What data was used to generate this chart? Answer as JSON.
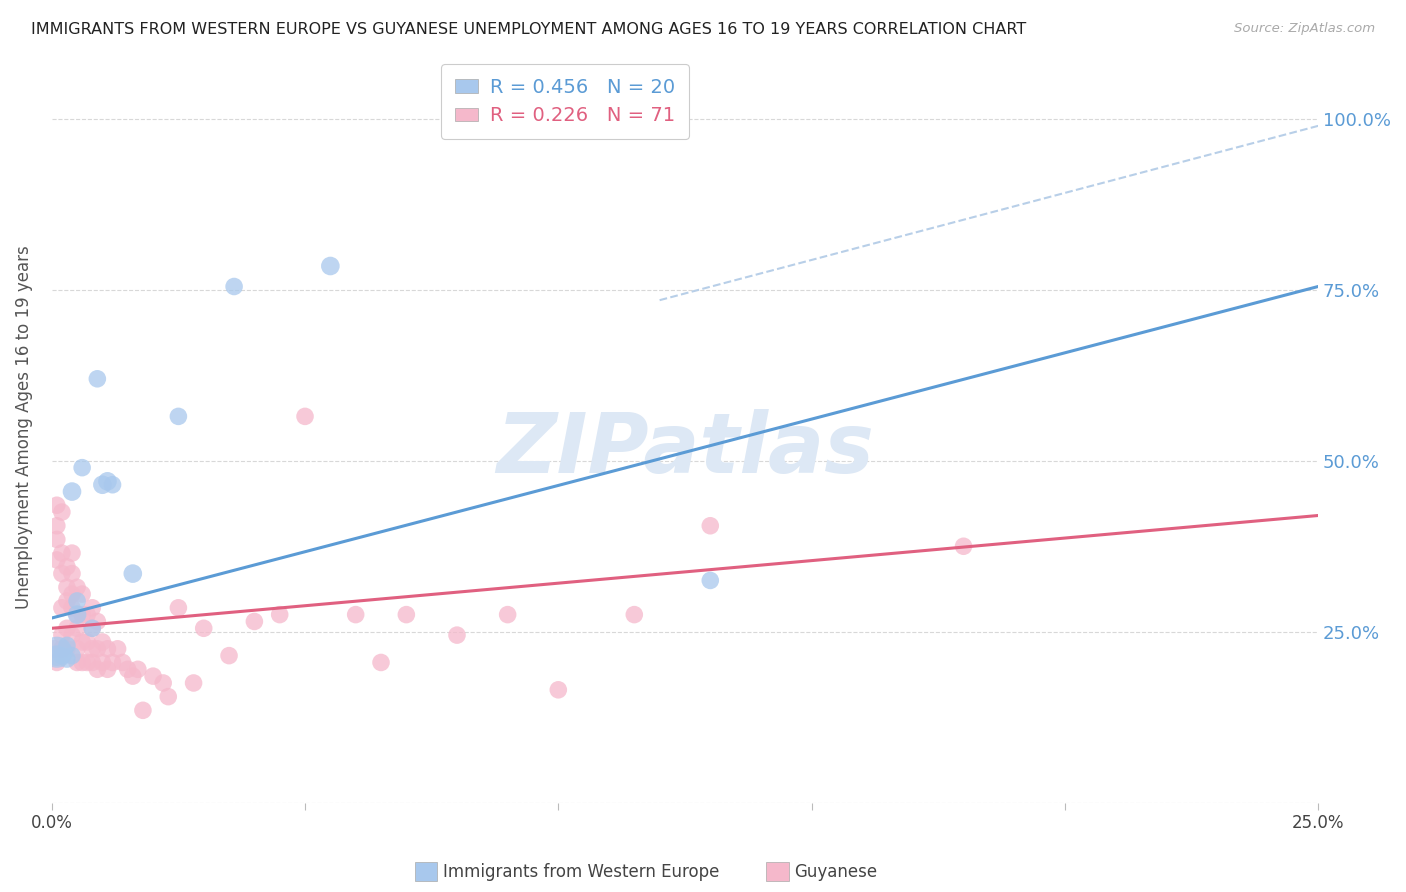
{
  "title": "IMMIGRANTS FROM WESTERN EUROPE VS GUYANESE UNEMPLOYMENT AMONG AGES 16 TO 19 YEARS CORRELATION CHART",
  "source": "Source: ZipAtlas.com",
  "ylabel": "Unemployment Among Ages 16 to 19 years",
  "right_yticks": [
    "100.0%",
    "75.0%",
    "50.0%",
    "25.0%"
  ],
  "right_ytick_vals": [
    1.0,
    0.75,
    0.5,
    0.25
  ],
  "background_color": "#ffffff",
  "grid_color": "#d8d8d8",
  "title_color": "#222222",
  "source_color": "#aaaaaa",
  "blue_color": "#a8c8ed",
  "pink_color": "#f5b8cb",
  "blue_line_color": "#5b9bd5",
  "pink_line_color": "#e06080",
  "dashed_line_color": "#b8cfe8",
  "legend_R_blue": "R = 0.456",
  "legend_N_blue": "N = 20",
  "legend_R_pink": "R = 0.226",
  "legend_N_pink": "N = 71",
  "blue_scatter_x": [
    0.001,
    0.002,
    0.003,
    0.003,
    0.004,
    0.004,
    0.005,
    0.005,
    0.006,
    0.008,
    0.009,
    0.01,
    0.011,
    0.012,
    0.016,
    0.025,
    0.036,
    0.055,
    0.13,
    0.001
  ],
  "blue_scatter_y": [
    0.215,
    0.215,
    0.21,
    0.23,
    0.215,
    0.455,
    0.275,
    0.295,
    0.49,
    0.255,
    0.62,
    0.465,
    0.47,
    0.465,
    0.335,
    0.565,
    0.755,
    0.785,
    0.325,
    0.22
  ],
  "blue_scatter_size": [
    220,
    160,
    160,
    160,
    160,
    180,
    180,
    160,
    160,
    160,
    160,
    180,
    180,
    160,
    180,
    160,
    160,
    180,
    160,
    500
  ],
  "pink_scatter_x": [
    0.0005,
    0.001,
    0.001,
    0.001,
    0.001,
    0.001,
    0.002,
    0.002,
    0.002,
    0.002,
    0.002,
    0.002,
    0.003,
    0.003,
    0.003,
    0.003,
    0.003,
    0.004,
    0.004,
    0.004,
    0.004,
    0.004,
    0.005,
    0.005,
    0.005,
    0.005,
    0.005,
    0.006,
    0.006,
    0.006,
    0.006,
    0.007,
    0.007,
    0.007,
    0.008,
    0.008,
    0.008,
    0.008,
    0.009,
    0.009,
    0.009,
    0.01,
    0.01,
    0.011,
    0.011,
    0.012,
    0.013,
    0.014,
    0.015,
    0.016,
    0.017,
    0.018,
    0.02,
    0.022,
    0.023,
    0.025,
    0.028,
    0.03,
    0.035,
    0.04,
    0.045,
    0.05,
    0.06,
    0.065,
    0.07,
    0.08,
    0.09,
    0.1,
    0.115,
    0.13,
    0.18
  ],
  "pink_scatter_y": [
    0.225,
    0.355,
    0.385,
    0.405,
    0.435,
    0.205,
    0.225,
    0.245,
    0.285,
    0.335,
    0.365,
    0.425,
    0.225,
    0.255,
    0.295,
    0.315,
    0.345,
    0.245,
    0.285,
    0.305,
    0.335,
    0.365,
    0.205,
    0.225,
    0.255,
    0.275,
    0.315,
    0.205,
    0.235,
    0.275,
    0.305,
    0.205,
    0.235,
    0.275,
    0.205,
    0.225,
    0.255,
    0.285,
    0.195,
    0.225,
    0.265,
    0.205,
    0.235,
    0.195,
    0.225,
    0.205,
    0.225,
    0.205,
    0.195,
    0.185,
    0.195,
    0.135,
    0.185,
    0.175,
    0.155,
    0.285,
    0.175,
    0.255,
    0.215,
    0.265,
    0.275,
    0.565,
    0.275,
    0.205,
    0.275,
    0.245,
    0.275,
    0.165,
    0.275,
    0.405,
    0.375
  ],
  "pink_scatter_size": [
    160,
    160,
    160,
    160,
    160,
    160,
    160,
    160,
    160,
    160,
    160,
    160,
    160,
    160,
    160,
    160,
    160,
    160,
    160,
    160,
    160,
    160,
    160,
    160,
    160,
    160,
    160,
    160,
    160,
    160,
    160,
    160,
    160,
    160,
    160,
    160,
    160,
    160,
    160,
    160,
    160,
    160,
    160,
    160,
    160,
    160,
    160,
    160,
    160,
    160,
    160,
    160,
    160,
    160,
    160,
    160,
    160,
    160,
    160,
    160,
    160,
    160,
    160,
    160,
    160,
    160,
    160,
    160,
    160,
    160,
    160
  ],
  "xlim": [
    0.0,
    0.25
  ],
  "ylim": [
    0.0,
    1.1
  ],
  "blue_trend_x0": 0.0,
  "blue_trend_y0": 0.27,
  "blue_trend_x1": 0.25,
  "blue_trend_y1": 0.755,
  "pink_trend_x0": 0.0,
  "pink_trend_y0": 0.255,
  "pink_trend_x1": 0.25,
  "pink_trend_y1": 0.42,
  "dashed_trend_x0": 0.12,
  "dashed_trend_y0": 0.735,
  "dashed_trend_x1": 0.25,
  "dashed_trend_y1": 0.99,
  "watermark_text": "ZIPatlas",
  "watermark_color": "#dde8f5",
  "bottom_legend_blue": "Immigrants from Western Europe",
  "bottom_legend_pink": "Guyanese"
}
